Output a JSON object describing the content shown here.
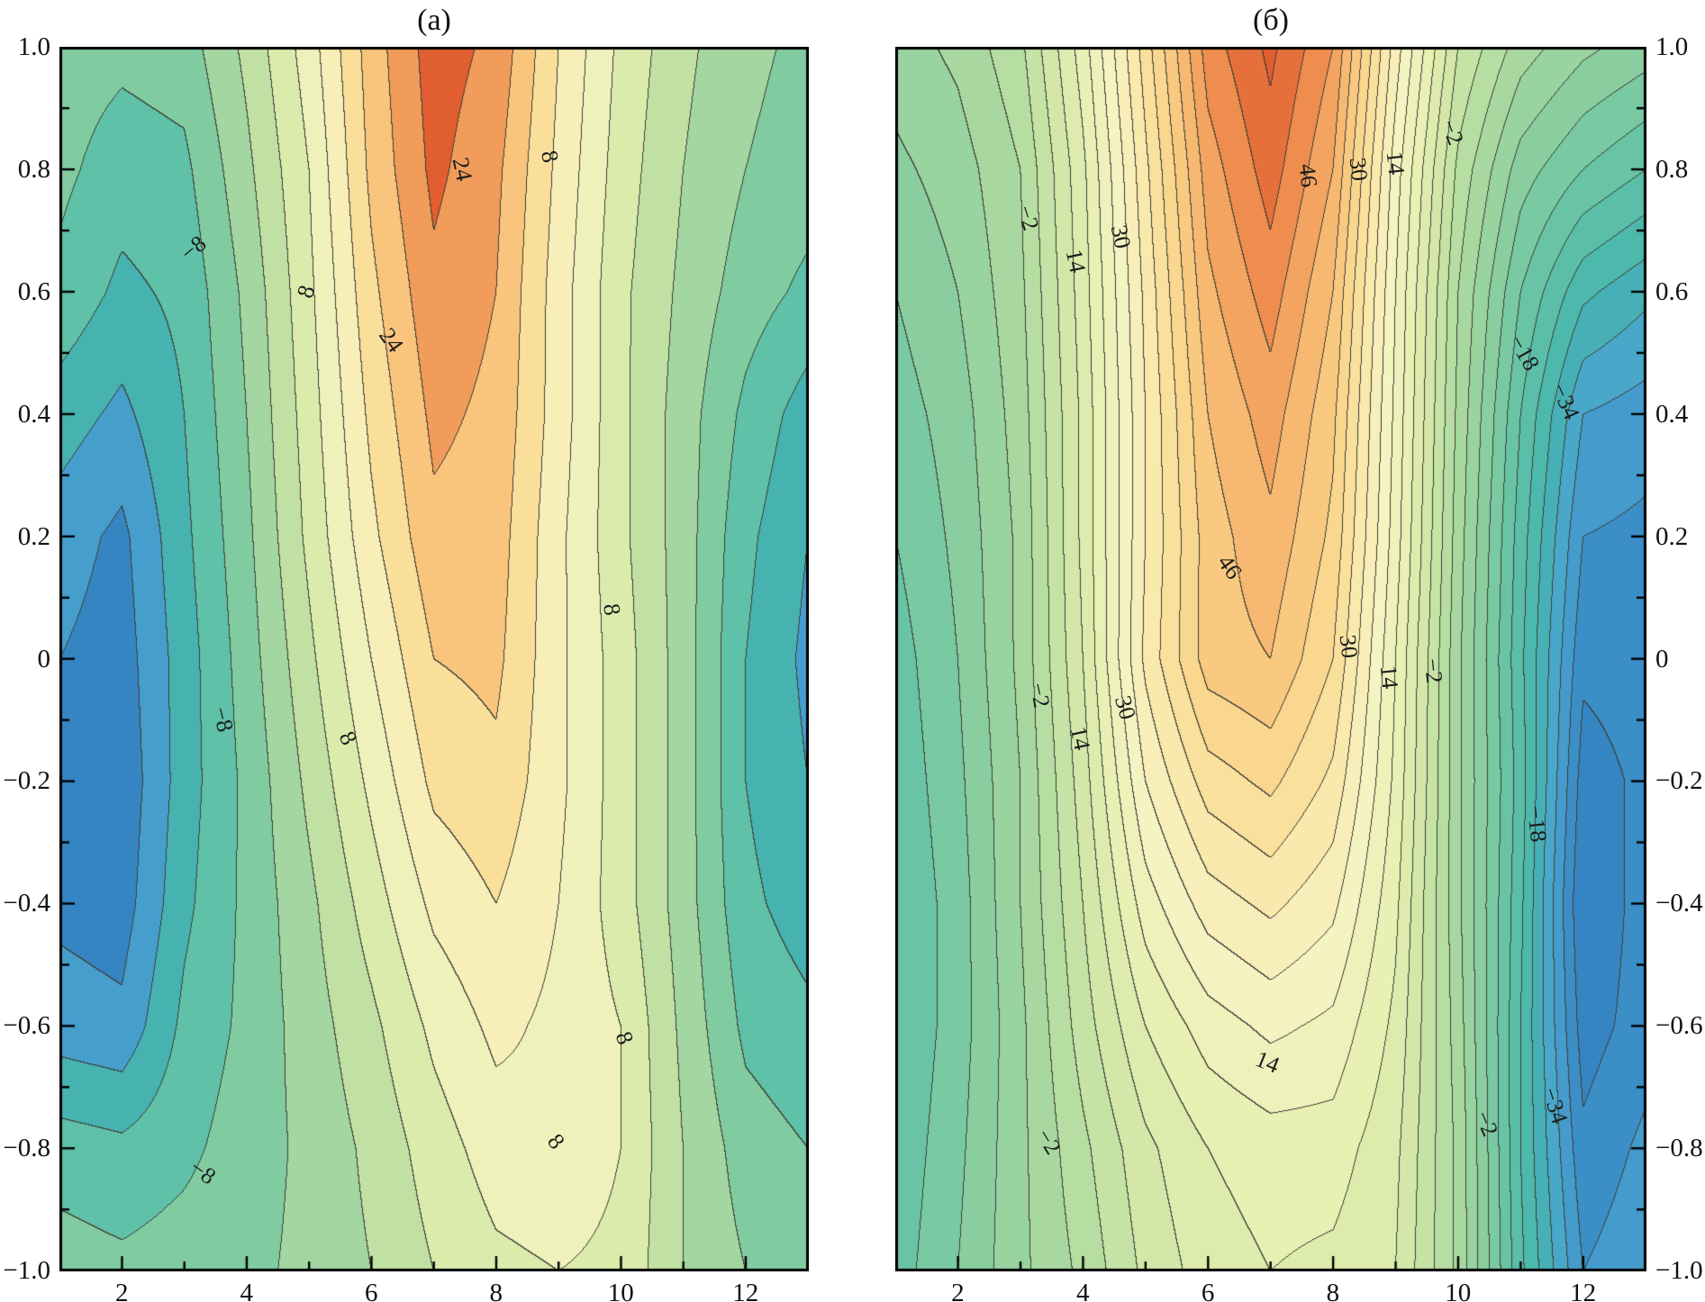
{
  "figure": {
    "background": "#ffffff",
    "description": "Two filled contour maps side by side"
  },
  "axes": {
    "xlim": [
      1,
      13
    ],
    "ylim": [
      -1,
      1
    ],
    "x_major": [
      {
        "v": 2,
        "label": "2"
      },
      {
        "v": 4,
        "label": "4"
      },
      {
        "v": 6,
        "label": "6"
      },
      {
        "v": 8,
        "label": "8"
      },
      {
        "v": 10,
        "label": "10"
      },
      {
        "v": 12,
        "label": "12"
      }
    ],
    "x_minor": [
      3,
      5,
      7,
      9,
      11
    ],
    "y_major": [
      {
        "v": 1.0,
        "label": "1.0"
      },
      {
        "v": 0.8,
        "label": "0.8"
      },
      {
        "v": 0.6,
        "label": "0.6"
      },
      {
        "v": 0.4,
        "label": "0.4"
      },
      {
        "v": 0.2,
        "label": "0.2"
      },
      {
        "v": 0.0,
        "label": "0"
      },
      {
        "v": -0.2,
        "label": "−0.2"
      },
      {
        "v": -0.4,
        "label": "−0.4"
      },
      {
        "v": -0.6,
        "label": "−0.6"
      },
      {
        "v": -0.8,
        "label": "−0.8"
      },
      {
        "v": -1.0,
        "label": "−1.0"
      }
    ],
    "y_minor": [
      0.9,
      0.7,
      0.5,
      0.3,
      0.1,
      -0.1,
      -0.3,
      -0.5,
      -0.7,
      -0.9
    ]
  },
  "colormap": {
    "anchors": [
      {
        "t": 0.0,
        "c": "#2e7ebc"
      },
      {
        "t": 0.06,
        "c": "#3a8ac6"
      },
      {
        "t": 0.13,
        "c": "#4aa5cf"
      },
      {
        "t": 0.19,
        "c": "#46b4ae"
      },
      {
        "t": 0.27,
        "c": "#63c3a6"
      },
      {
        "t": 0.36,
        "c": "#8ecf9f"
      },
      {
        "t": 0.45,
        "c": "#b5dda1"
      },
      {
        "t": 0.53,
        "c": "#d3e8a8"
      },
      {
        "t": 0.6,
        "c": "#e9f0b4"
      },
      {
        "t": 0.67,
        "c": "#f7f3c4"
      },
      {
        "t": 0.74,
        "c": "#fae9ab"
      },
      {
        "t": 0.81,
        "c": "#fad68d"
      },
      {
        "t": 0.87,
        "c": "#f8bd74"
      },
      {
        "t": 0.93,
        "c": "#f19a58"
      },
      {
        "t": 0.97,
        "c": "#e97c42"
      },
      {
        "t": 1.0,
        "c": "#e15e30"
      }
    ],
    "line_color": "#3f4038",
    "frame_color": "#000000"
  },
  "chart_data": [
    {
      "type": "heatmap",
      "subtype": "filled-contour",
      "title": "(а)",
      "xlabel": "",
      "ylabel": "",
      "xlim": [
        1,
        13
      ],
      "ylim": [
        -1,
        1
      ],
      "grid": false,
      "contour_interval": 4,
      "contour_offset": 0,
      "labeled_levels": [
        -8,
        8,
        24
      ],
      "color_range": [
        -24,
        30
      ],
      "x": [
        1,
        2,
        3,
        4,
        5,
        6,
        7,
        8,
        9,
        10,
        11,
        12,
        13
      ],
      "y": [
        1.0,
        0.8,
        0.6,
        0.4,
        0.2,
        0.0,
        -0.2,
        -0.4,
        -0.6,
        -0.8,
        -1.0
      ],
      "values": [
        [
          -6,
          -7,
          -6,
          1,
          10,
          22,
          30,
          27,
          16,
          7,
          1,
          -3,
          -5
        ],
        [
          -7,
          -10,
          -9,
          -1,
          8,
          21,
          29,
          25,
          15,
          6,
          0,
          -4,
          -6
        ],
        [
          -9,
          -13,
          -11,
          -3,
          7,
          19,
          27,
          24,
          14,
          5,
          -1,
          -6,
          -9
        ],
        [
          -14,
          -17,
          -12,
          -4,
          6,
          17,
          25,
          23,
          14,
          5,
          -2,
          -9,
          -14
        ],
        [
          -18,
          -21,
          -13,
          -5,
          5,
          15,
          23,
          22,
          13,
          5,
          -2,
          -11,
          -16
        ],
        [
          -20,
          -22,
          -14,
          -6,
          3,
          12,
          20,
          21,
          13,
          6,
          -2,
          -12,
          -17
        ],
        [
          -21,
          -23,
          -14,
          -7,
          1,
          9,
          17,
          19,
          13,
          6,
          -2,
          -12,
          -16
        ],
        [
          -21,
          -22,
          -13,
          -7,
          -1,
          6,
          13,
          16,
          12,
          6,
          -2,
          -11,
          -14
        ],
        [
          -18,
          -19,
          -11,
          -7,
          -2,
          3,
          9,
          13,
          11,
          8,
          -1,
          -9,
          -11
        ],
        [
          -10,
          -11,
          -9,
          -6,
          -3,
          1,
          6,
          10,
          11,
          8,
          0,
          -6,
          -8
        ],
        [
          -6,
          -7,
          -6,
          -5,
          -3,
          0,
          4,
          7,
          8,
          7,
          0,
          -4,
          -5
        ]
      ],
      "contour_labels": [
        {
          "text": "−8",
          "x": 3.15,
          "y": 0.67,
          "rot": -40
        },
        {
          "text": "8",
          "x": 4.95,
          "y": 0.6,
          "rot": -72
        },
        {
          "text": "24",
          "x": 7.45,
          "y": 0.8,
          "rot": 78
        },
        {
          "text": "8",
          "x": 8.85,
          "y": 0.82,
          "rot": 78
        },
        {
          "text": "24",
          "x": 6.32,
          "y": 0.52,
          "rot": 55
        },
        {
          "text": "8",
          "x": 9.85,
          "y": 0.08,
          "rot": 82
        },
        {
          "text": "−8",
          "x": 3.62,
          "y": -0.1,
          "rot": 76
        },
        {
          "text": "8",
          "x": 5.62,
          "y": -0.13,
          "rot": 64
        },
        {
          "text": "8",
          "x": 10.05,
          "y": -0.62,
          "rot": 70
        },
        {
          "text": "−8",
          "x": 3.3,
          "y": -0.84,
          "rot": 35
        },
        {
          "text": "8",
          "x": 8.95,
          "y": -0.79,
          "rot": 52
        }
      ]
    },
    {
      "type": "heatmap",
      "subtype": "filled-contour",
      "title": "(б)",
      "xlabel": "",
      "ylabel": "",
      "xlim": [
        1,
        13
      ],
      "ylim": [
        -1,
        1
      ],
      "grid": false,
      "contour_interval": 4,
      "contour_offset": 2,
      "labeled_levels": [
        -34,
        -18,
        -2,
        14,
        30,
        46
      ],
      "color_range": [
        -52,
        62
      ],
      "x": [
        1,
        2,
        3,
        4,
        5,
        6,
        7,
        8,
        9,
        10,
        11,
        12,
        13
      ],
      "y": [
        1.0,
        0.8,
        0.6,
        0.4,
        0.2,
        0.0,
        -0.2,
        -0.4,
        -0.6,
        -0.8,
        -1.0
      ],
      "values": [
        [
          -8,
          -5,
          1,
          16,
          36,
          56,
          63,
          54,
          28,
          6,
          -4,
          -9,
          -12
        ],
        [
          -11,
          -8,
          -2,
          13,
          33,
          52,
          60,
          50,
          24,
          1,
          -12,
          -18,
          -22
        ],
        [
          -14,
          -10,
          -3,
          12,
          31,
          49,
          56,
          46,
          22,
          -2,
          -18,
          -29,
          -33
        ],
        [
          -16,
          -12,
          -4,
          11,
          30,
          46,
          52,
          43,
          21,
          -3,
          -22,
          -38,
          -40
        ],
        [
          -18,
          -13,
          -5,
          11,
          30,
          44,
          49,
          41,
          20,
          -4,
          -24,
          -42,
          -43
        ],
        [
          -20,
          -14,
          -5,
          10,
          31,
          44,
          46,
          38,
          18,
          -5,
          -25,
          -45,
          -44
        ],
        [
          -21,
          -15,
          -6,
          8,
          26,
          36,
          39,
          33,
          17,
          -5,
          -24,
          -48,
          -45
        ],
        [
          -22,
          -16,
          -6,
          6,
          20,
          28,
          31,
          27,
          15,
          -5,
          -25,
          -50,
          -44
        ],
        [
          -22,
          -16,
          -7,
          4,
          14,
          20,
          23,
          21,
          13,
          -4,
          -26,
          -48,
          -44
        ],
        [
          -21,
          -15,
          -7,
          1,
          9,
          14,
          16,
          16,
          11,
          -3,
          -26,
          -45,
          -41
        ],
        [
          -20,
          -14,
          -7,
          -1,
          7,
          12,
          14,
          13,
          10,
          -3,
          -25,
          -42,
          -39
        ]
      ],
      "contour_labels": [
        {
          "text": "−2",
          "x": 3.12,
          "y": 0.72,
          "rot": 72
        },
        {
          "text": "14",
          "x": 3.88,
          "y": 0.65,
          "rot": 78
        },
        {
          "text": "30",
          "x": 4.6,
          "y": 0.69,
          "rot": 78
        },
        {
          "text": "46",
          "x": 7.6,
          "y": 0.79,
          "rot": 84
        },
        {
          "text": "30",
          "x": 8.4,
          "y": 0.8,
          "rot": 84
        },
        {
          "text": "14",
          "x": 9.0,
          "y": 0.81,
          "rot": 84
        },
        {
          "text": "−2",
          "x": 9.9,
          "y": 0.86,
          "rot": 68
        },
        {
          "text": "−18",
          "x": 11.05,
          "y": 0.5,
          "rot": 60
        },
        {
          "text": "−34",
          "x": 11.72,
          "y": 0.42,
          "rot": 66
        },
        {
          "text": "46",
          "x": 6.35,
          "y": 0.15,
          "rot": 55
        },
        {
          "text": "30",
          "x": 8.25,
          "y": 0.02,
          "rot": 84
        },
        {
          "text": "14",
          "x": 8.9,
          "y": -0.03,
          "rot": 84
        },
        {
          "text": "−2",
          "x": 9.6,
          "y": -0.02,
          "rot": 84
        },
        {
          "text": "−2",
          "x": 3.3,
          "y": -0.06,
          "rot": 78
        },
        {
          "text": "14",
          "x": 3.95,
          "y": -0.13,
          "rot": 78
        },
        {
          "text": "30",
          "x": 4.68,
          "y": -0.08,
          "rot": 74
        },
        {
          "text": "−18",
          "x": 11.25,
          "y": -0.27,
          "rot": 84
        },
        {
          "text": "14",
          "x": 6.95,
          "y": -0.66,
          "rot": 22
        },
        {
          "text": "−2",
          "x": 10.45,
          "y": -0.76,
          "rot": 66
        },
        {
          "text": "−34",
          "x": 11.55,
          "y": -0.73,
          "rot": 72
        },
        {
          "text": "−2",
          "x": 3.45,
          "y": -0.79,
          "rot": 58
        }
      ]
    }
  ]
}
